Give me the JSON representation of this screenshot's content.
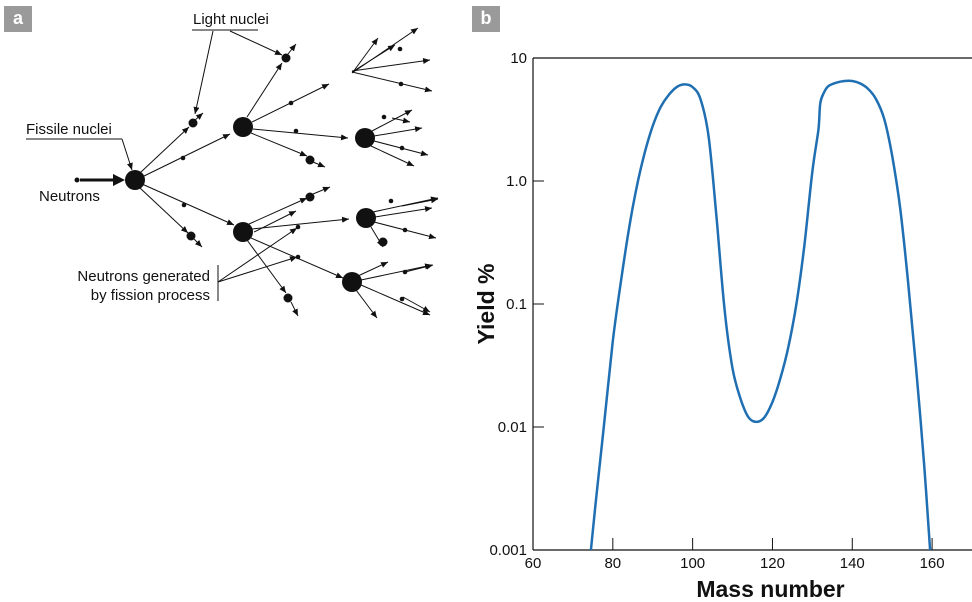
{
  "panel_a": {
    "badge": "a",
    "labels": {
      "light_nuclei": "Light nuclei",
      "fissile_nuclei": "Fissile nuclei",
      "neutrons": "Neutrons",
      "generated_line1": "Neutrons generated",
      "generated_line2": "by fission process"
    }
  },
  "panel_b": {
    "badge": "b"
  },
  "chart_data": {
    "type": "line",
    "title": "",
    "xlabel": "Mass number",
    "ylabel": "Yield %",
    "xlim": [
      60,
      170
    ],
    "ylim": [
      0.001,
      10
    ],
    "yscale": "log",
    "x_ticks": [
      60,
      80,
      100,
      120,
      140,
      160
    ],
    "y_ticks": [
      0.001,
      0.01,
      0.1,
      1.0,
      10
    ],
    "y_tick_labels": [
      "0.001",
      "0.01",
      "0.1",
      "1.0",
      "10"
    ],
    "line_color": "#1f6fb2",
    "series": [
      {
        "x": [
          74.5,
          76,
          78,
          80,
          82,
          84,
          86,
          88,
          90,
          92,
          94,
          96,
          98,
          100,
          102,
          104,
          106,
          108,
          110,
          112,
          114,
          116,
          118,
          120,
          122,
          124,
          126,
          128,
          130,
          131.5,
          132,
          133,
          134,
          136,
          138,
          140,
          142,
          144,
          146,
          148,
          150,
          152,
          154,
          156,
          158,
          159.5
        ],
        "y": [
          0.001,
          0.003,
          0.012,
          0.05,
          0.15,
          0.4,
          0.9,
          1.7,
          2.8,
          4.0,
          5.0,
          5.8,
          6.1,
          5.8,
          4.6,
          2.3,
          0.5,
          0.09,
          0.03,
          0.017,
          0.012,
          0.011,
          0.012,
          0.016,
          0.025,
          0.045,
          0.1,
          0.3,
          1.2,
          2.6,
          4.3,
          5.3,
          5.9,
          6.3,
          6.5,
          6.5,
          6.2,
          5.6,
          4.6,
          3.2,
          1.6,
          0.6,
          0.15,
          0.03,
          0.005,
          0.001
        ]
      }
    ]
  }
}
